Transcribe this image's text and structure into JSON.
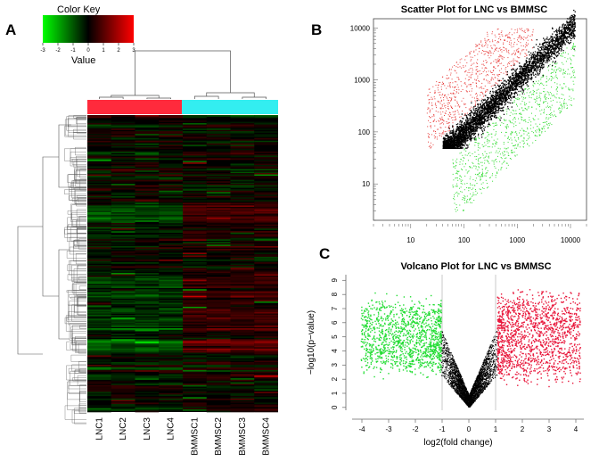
{
  "panels": {
    "a": "A",
    "b": "B",
    "c": "C"
  },
  "color_key": {
    "title": "Color Key",
    "value_label": "Value",
    "ticks": [
      "-3",
      "-2",
      "-1",
      "0",
      "1",
      "2",
      "3"
    ],
    "range": [
      -3,
      3
    ],
    "colors": {
      "low": "#00ff00",
      "mid": "#000000",
      "high": "#ff0000"
    }
  },
  "chart_data": [
    {
      "type": "heatmap",
      "columns": [
        "LNC1",
        "LNC2",
        "LNC3",
        "LNC4",
        "BMMSC1",
        "BMMSC2",
        "BMMSC3",
        "BMMSC4"
      ],
      "groups": [
        {
          "columns": [
            "LNC1",
            "LNC2",
            "LNC3",
            "LNC4"
          ],
          "color": "#ff2a3c"
        },
        {
          "columns": [
            "BMMSC1",
            "BMMSC2",
            "BMMSC3",
            "BMMSC4"
          ],
          "color": "#33eef0"
        }
      ],
      "value_range": [
        -3,
        3
      ],
      "color_scale": [
        "#00ff00",
        "#000000",
        "#ff0000"
      ],
      "row_dendrogram": true,
      "column_dendrogram": true
    },
    {
      "type": "scatter",
      "title": "Scatter Plot for LNC vs BMMSC",
      "x_scale": "log",
      "y_scale": "log",
      "xlim": [
        2,
        20000
      ],
      "ylim": [
        2,
        15000
      ],
      "x_ticks": [
        10,
        100,
        1000,
        10000
      ],
      "y_ticks": [
        10,
        100,
        1000,
        10000
      ],
      "colors": {
        "up": "#e8413f",
        "down": "#33dd33",
        "unchanged": "#000000"
      },
      "point_clouds": [
        {
          "class": "unchanged",
          "x_range": [
            40,
            12000
          ],
          "fold_spread": 2
        },
        {
          "class": "up",
          "x_range": [
            20,
            2000
          ],
          "y_above_fold": [
            2,
            30
          ]
        },
        {
          "class": "down",
          "x_range": [
            60,
            12000
          ],
          "y_below_fold": [
            2,
            30
          ]
        }
      ]
    },
    {
      "type": "scatter",
      "title": "Volcano Plot for LNC vs BMMSC",
      "xlabel": "log2(fold change)",
      "ylabel": "−log10(p−value)",
      "xlim": [
        -4.3,
        4.3
      ],
      "ylim": [
        -0.2,
        9.4
      ],
      "x_ticks": [
        -4,
        -3,
        -2,
        -1,
        0,
        1,
        2,
        3,
        4
      ],
      "y_ticks": [
        0,
        1,
        2,
        3,
        4,
        5,
        6,
        7,
        8,
        9
      ],
      "thresholds": {
        "log2_fold_change": [
          -1,
          1
        ]
      },
      "colors": {
        "up": "#e8163a",
        "down": "#22dd33",
        "not_significant": "#000000"
      }
    }
  ]
}
